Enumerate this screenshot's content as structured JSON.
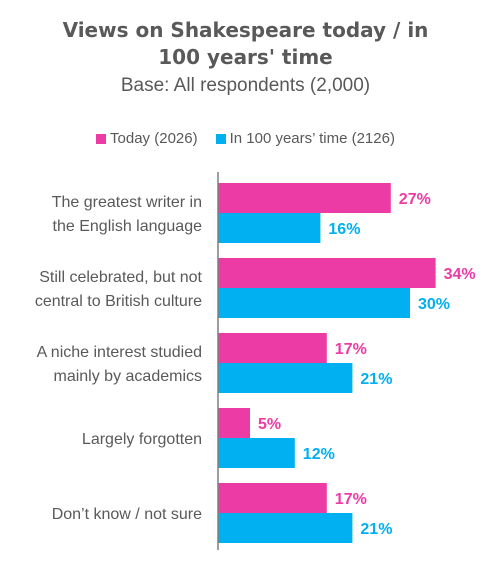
{
  "chart_data": {
    "type": "bar",
    "orientation": "horizontal",
    "title_lines": [
      "Views on Shakespeare today / in",
      "100 years' time"
    ],
    "subtitle": "Base: All respondents (2,000)",
    "categories": [
      [
        "The greatest writer in",
        "the English language"
      ],
      [
        "Still celebrated, but not",
        "central to British culture"
      ],
      [
        "A niche interest studied",
        "mainly by academics"
      ],
      [
        "Largely forgotten"
      ],
      [
        "Don’t know / not sure"
      ]
    ],
    "series": [
      {
        "name": "Today (2026)",
        "color": "#EC3BA4",
        "values": [
          27,
          34,
          17,
          5,
          17
        ],
        "labels": [
          "27%",
          "34%",
          "17%",
          "5%",
          "17%"
        ]
      },
      {
        "name": "In 100 years’ time (2126)",
        "color": "#00B0F0",
        "values": [
          16,
          30,
          21,
          12,
          21
        ],
        "labels": [
          "16%",
          "30%",
          "21%",
          "12%",
          "21%"
        ]
      }
    ],
    "xlim": [
      0,
      40
    ],
    "legend_position": "top",
    "grid": false
  }
}
